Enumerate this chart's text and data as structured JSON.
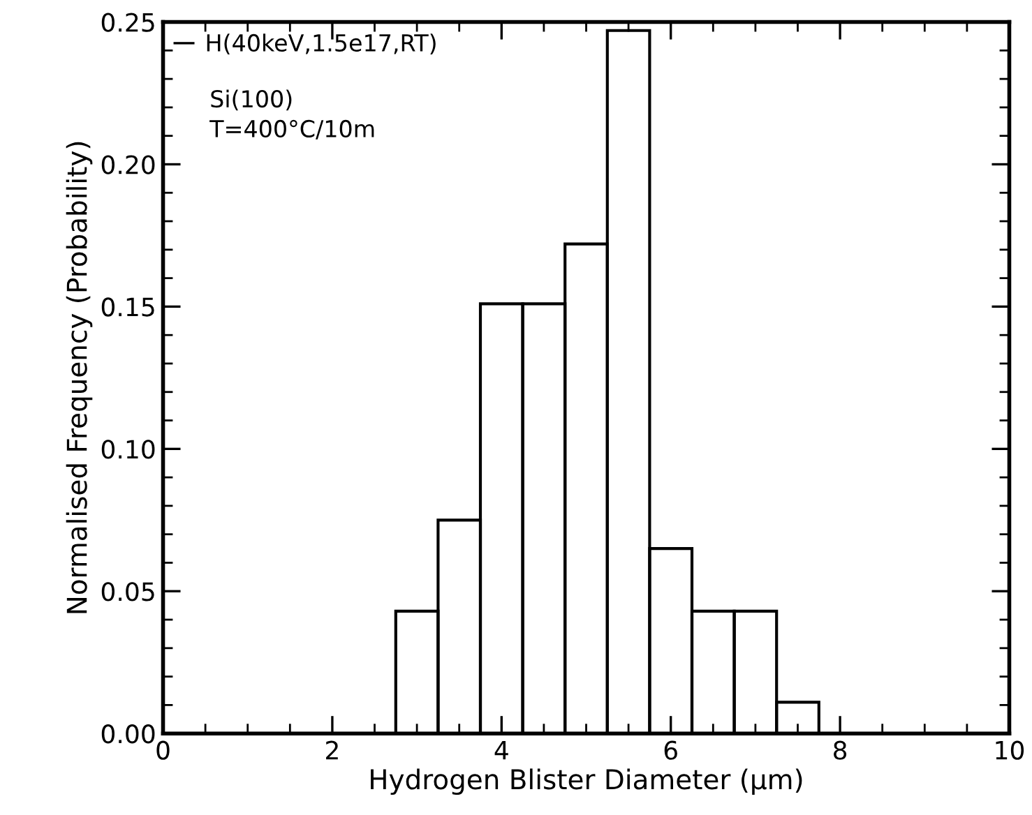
{
  "chart_data": {
    "type": "histogram",
    "xlabel": "Hydrogen Blister Diameter (μm)",
    "ylabel": "Normalised Frequency (Probability)",
    "bins": [
      2.75,
      3.25,
      3.75,
      4.25,
      4.75,
      5.25,
      5.75,
      6.25,
      6.75,
      7.25,
      7.75
    ],
    "series": [
      {
        "name": "H(40keV,1.5e17,RT)",
        "color": "#000000",
        "values": [
          0.043,
          0.075,
          0.151,
          0.151,
          0.172,
          0.247,
          0.065,
          0.043,
          0.043,
          0.011
        ]
      }
    ],
    "annotations": [
      "Si(100)",
      "T=400°C/10m"
    ],
    "xlim": [
      0,
      10
    ],
    "xticks": [
      0,
      2,
      4,
      6,
      8,
      10
    ],
    "ylim": [
      0,
      0.25
    ],
    "yticks": [
      {
        "value": 0,
        "label": "0.00"
      },
      {
        "value": 0.05,
        "label": "0.05"
      },
      {
        "value": 0.1,
        "label": "0.10"
      },
      {
        "value": 0.15,
        "label": "0.15"
      },
      {
        "value": 0.2,
        "label": "0.20"
      },
      {
        "value": 0.25,
        "label": "0.25"
      }
    ],
    "legend": "top left",
    "grid": false
  }
}
